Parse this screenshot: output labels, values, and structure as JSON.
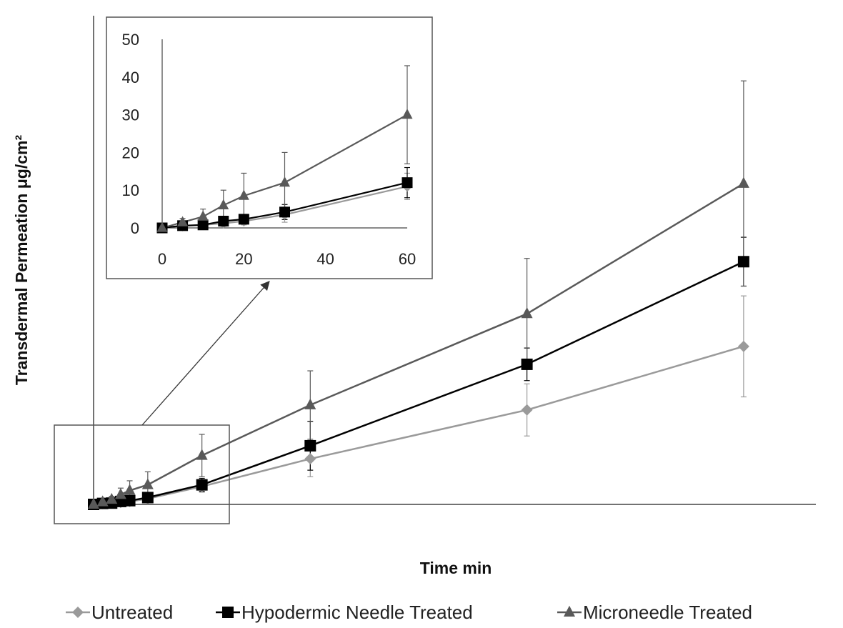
{
  "chart_data": {
    "type": "line",
    "title": "",
    "xlabel": "Time min",
    "ylabel": "Transdermal Permeation μg/cm²",
    "xlim": [
      0,
      400
    ],
    "ylim": [
      0,
      300
    ],
    "x_ticks": [
      "0",
      "50",
      "100",
      "150",
      "200",
      "250",
      "300",
      "350",
      "400"
    ],
    "y_ticks": [
      "0",
      "50",
      "100",
      "150",
      "200",
      "250",
      "300"
    ],
    "grid": false,
    "legend_position": "bottom",
    "colors": {
      "untreated": "#9a9a9a",
      "hypodermic": "#000000",
      "microneedle": "#595959"
    },
    "series": [
      {
        "name": "Untreated",
        "marker": "diamond",
        "x": [
          0,
          5,
          10,
          15,
          20,
          30,
          60,
          120,
          240,
          360
        ],
        "y": [
          0,
          0.5,
          0.8,
          1.2,
          1.8,
          3.5,
          11,
          28,
          58,
          97
        ],
        "err": [
          0,
          0.3,
          0.5,
          0.8,
          1,
          2,
          3.5,
          11,
          16,
          31
        ]
      },
      {
        "name": "Hypodermic Needle Treated",
        "marker": "square",
        "x": [
          0,
          5,
          10,
          15,
          20,
          30,
          60,
          120,
          240,
          360
        ],
        "y": [
          0,
          0.6,
          0.8,
          1.8,
          2.3,
          4.2,
          12,
          36,
          86,
          149
        ],
        "err": [
          0,
          0.3,
          0.5,
          1,
          1.2,
          2,
          4,
          15,
          10,
          15
        ]
      },
      {
        "name": "Microneedle Treated",
        "marker": "triangle",
        "x": [
          0,
          5,
          10,
          15,
          20,
          30,
          60,
          120,
          240,
          360
        ],
        "y": [
          0,
          1.5,
          3,
          6,
          8.5,
          12,
          30,
          61,
          117,
          197
        ],
        "err": [
          0,
          1,
          2,
          4,
          6,
          8,
          13,
          21,
          34,
          63
        ]
      }
    ],
    "inset": {
      "xlim": [
        0,
        60
      ],
      "ylim": [
        0,
        50
      ],
      "x_ticks": [
        "0",
        "20",
        "40",
        "60"
      ],
      "y_ticks": [
        "0",
        "10",
        "20",
        "30",
        "40",
        "50"
      ]
    }
  }
}
